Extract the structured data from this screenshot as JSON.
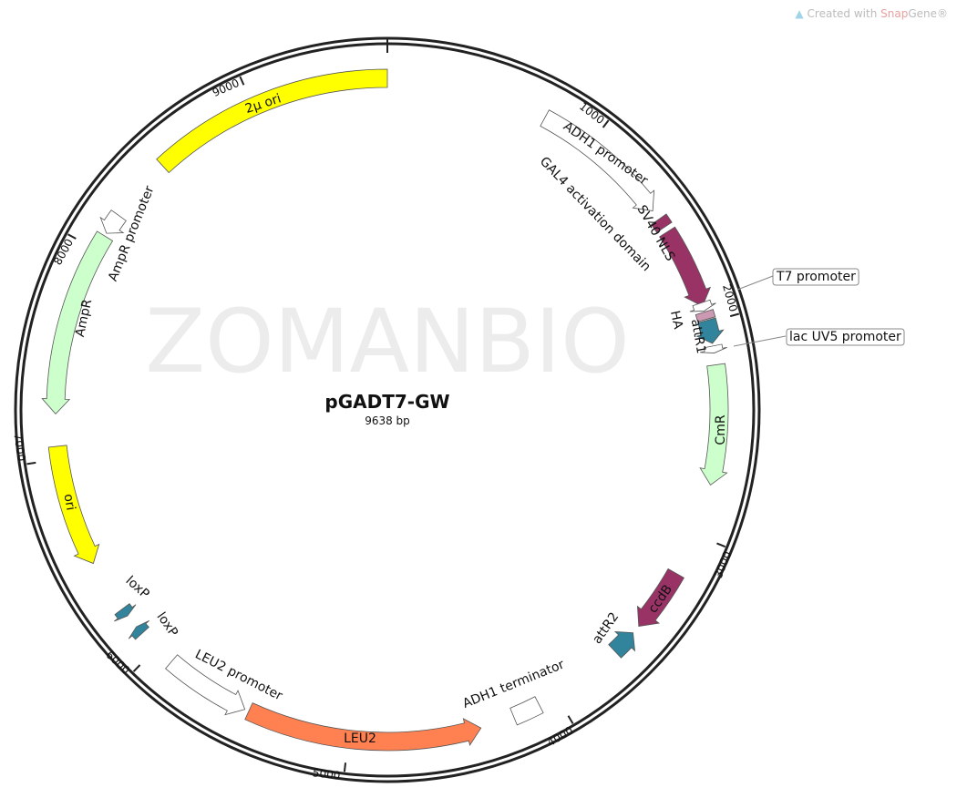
{
  "credit": {
    "prefix": "Created with ",
    "brand": "Snap",
    "suffix": "Gene®",
    "icon": "snapgene-leaf-icon"
  },
  "watermark": "ZOMANBIO",
  "plasmid": {
    "name": "pGADT7-GW",
    "length_label": "9638 bp",
    "length": 9638
  },
  "ticks": [
    {
      "bp": 1000,
      "label": "1000"
    },
    {
      "bp": 2000,
      "label": "2000"
    },
    {
      "bp": 3000,
      "label": "3000"
    },
    {
      "bp": 4000,
      "label": "4000"
    },
    {
      "bp": 5000,
      "label": "5000"
    },
    {
      "bp": 6000,
      "label": "6000"
    },
    {
      "bp": 7000,
      "label": "7000"
    },
    {
      "bp": 8000,
      "label": "8000"
    },
    {
      "bp": 9000,
      "label": "9000"
    }
  ],
  "features": [
    {
      "name": "2μ ori",
      "start": 8497,
      "end": 9638,
      "dir": "none",
      "color": "#ffff00"
    },
    {
      "name": "ADH1 promoter",
      "start": 758,
      "end": 1422,
      "dir": "fwd",
      "color": "#ffffff"
    },
    {
      "name": "SV40 NLS",
      "start": 1470,
      "end": 1515,
      "dir": "none",
      "color": "#993366"
    },
    {
      "name": "GAL4 activation domain",
      "start": 1540,
      "end": 1922,
      "dir": "fwd",
      "color": "#993366"
    },
    {
      "name": "T7 promoter",
      "start": 1905,
      "end": 1945,
      "dir": "fwd",
      "color": "#ffffff"
    },
    {
      "name": "HA",
      "start": 1950,
      "end": 1985,
      "dir": "none",
      "color": "#cc99b2"
    },
    {
      "name": "attR1",
      "start": 1990,
      "end": 2100,
      "dir": "fwd",
      "color": "#31849b"
    },
    {
      "name": "lac UV5 promoter",
      "start": 2112,
      "end": 2145,
      "dir": "fwd",
      "color": "#ffffff"
    },
    {
      "name": "CmR",
      "start": 2200,
      "end": 2760,
      "dir": "fwd",
      "color": "#ccffcc"
    },
    {
      "name": "ccdB",
      "start": 3200,
      "end": 3500,
      "dir": "fwd",
      "color": "#993366"
    },
    {
      "name": "attR2",
      "start": 3540,
      "end": 3660,
      "dir": "rev",
      "color": "#31849b"
    },
    {
      "name": "ADH1 terminator",
      "start": 4090,
      "end": 4220,
      "dir": "none",
      "color": "#ffffff"
    },
    {
      "name": "LEU2",
      "start": 4380,
      "end": 5480,
      "dir": "rev",
      "color": "#ff8050"
    },
    {
      "name": "LEU2 promoter",
      "start": 5500,
      "end": 5906,
      "dir": "rev",
      "color": "#ffffff"
    },
    {
      "name": "loxP",
      "start": 6095,
      "end": 6135,
      "dir": "fwd",
      "color": "#31849b"
    },
    {
      "name": "loxP",
      "start": 6200,
      "end": 6240,
      "dir": "rev",
      "color": "#31849b"
    },
    {
      "name": "ori",
      "start": 6490,
      "end": 7060,
      "dir": "rev",
      "color": "#ffff00"
    },
    {
      "name": "AmpR",
      "start": 7210,
      "end": 8075,
      "dir": "rev",
      "color": "#ccffcc"
    },
    {
      "name": "AmpR promoter",
      "start": 8090,
      "end": 8190,
      "dir": "rev",
      "color": "#ffffff"
    }
  ]
}
